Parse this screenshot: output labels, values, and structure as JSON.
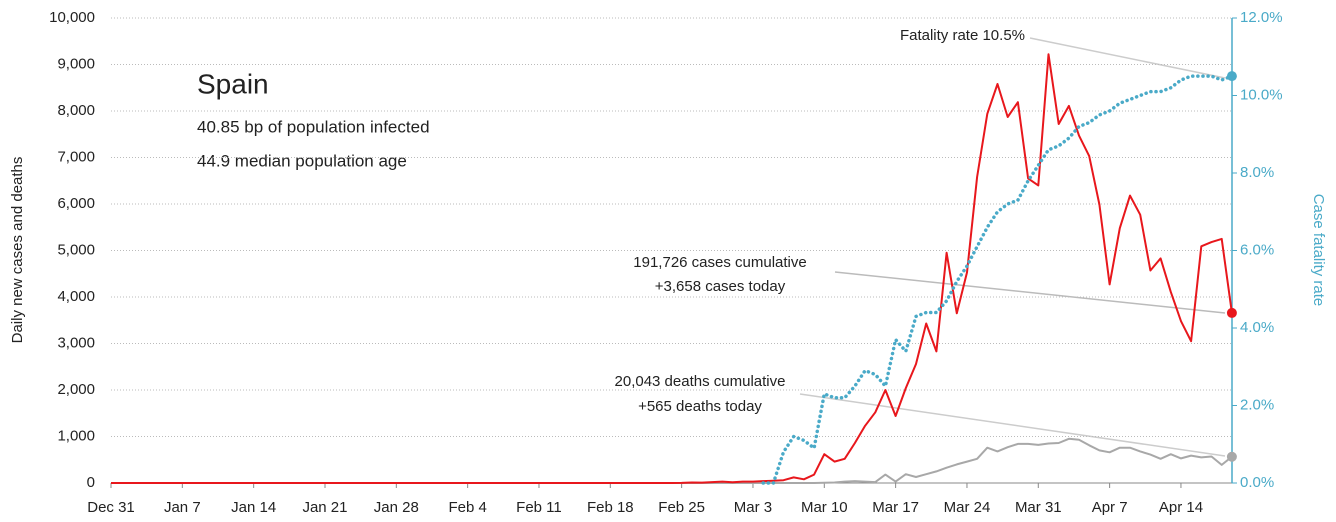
{
  "chart_data": {
    "type": "line",
    "title": "Spain",
    "subtitle": [
      "40.85 bp of population infected",
      "44.9 median population age"
    ],
    "ylabel": "Daily new cases and deaths",
    "y2label": "Case fatality rate",
    "annotations": [
      "Fatality rate 10.5%",
      "191,726 cases cumulative",
      "+3,658 cases today",
      "20,043 deaths cumulative",
      "+565 deaths today"
    ],
    "categories": [
      "Dec 31",
      null,
      null,
      null,
      null,
      null,
      null,
      "Jan 7",
      null,
      null,
      null,
      null,
      null,
      null,
      "Jan 14",
      null,
      null,
      null,
      null,
      null,
      null,
      "Jan 21",
      null,
      null,
      null,
      null,
      null,
      null,
      "Jan 28",
      null,
      null,
      null,
      null,
      null,
      null,
      "Feb 4",
      null,
      null,
      null,
      null,
      null,
      null,
      "Feb 11",
      null,
      null,
      null,
      null,
      null,
      null,
      "Feb 18",
      null,
      null,
      null,
      null,
      null,
      null,
      "Feb 25",
      null,
      null,
      null,
      null,
      null,
      null,
      "Mar 3",
      null,
      null,
      null,
      null,
      null,
      null,
      "Mar 10",
      null,
      null,
      null,
      null,
      null,
      null,
      "Mar 17",
      null,
      null,
      null,
      null,
      null,
      null,
      "Mar 24",
      null,
      null,
      null,
      null,
      null,
      null,
      "Mar 31",
      null,
      null,
      null,
      null,
      null,
      null,
      "Apr 7",
      null,
      null,
      null,
      null,
      null,
      null,
      "Apr 14",
      null,
      null,
      null,
      null,
      null
    ],
    "series": [
      {
        "name": "Daily new deaths",
        "color": "#a8a8a8",
        "values": [
          0,
          0,
          0,
          0,
          0,
          0,
          0,
          0,
          0,
          0,
          0,
          0,
          0,
          0,
          0,
          0,
          0,
          0,
          0,
          0,
          0,
          0,
          0,
          0,
          0,
          0,
          0,
          0,
          0,
          0,
          0,
          0,
          0,
          0,
          0,
          0,
          0,
          0,
          0,
          0,
          0,
          0,
          0,
          0,
          0,
          0,
          0,
          0,
          0,
          0,
          0,
          0,
          0,
          0,
          0,
          0,
          0,
          0,
          0,
          0,
          0,
          0,
          0,
          0,
          0,
          0,
          0,
          0,
          0,
          0,
          5,
          10,
          30,
          40,
          30,
          20,
          180,
          30,
          190,
          130,
          190,
          250,
          330,
          400,
          460,
          520,
          760,
          680,
          770,
          840,
          840,
          820,
          850,
          860,
          950,
          930,
          810,
          700,
          660,
          760,
          760,
          680,
          610,
          520,
          620,
          530,
          590,
          550,
          570,
          390,
          565
        ]
      },
      {
        "name": "Daily new cases",
        "color": "#e8171c",
        "values": [
          0,
          0,
          0,
          0,
          0,
          0,
          0,
          0,
          0,
          0,
          0,
          0,
          0,
          0,
          0,
          0,
          0,
          0,
          0,
          0,
          0,
          0,
          0,
          0,
          0,
          0,
          0,
          0,
          0,
          0,
          0,
          0,
          0,
          0,
          0,
          0,
          0,
          0,
          0,
          0,
          0,
          0,
          0,
          0,
          0,
          0,
          0,
          0,
          0,
          0,
          0,
          0,
          0,
          0,
          0,
          0,
          2,
          10,
          8,
          20,
          30,
          15,
          30,
          30,
          40,
          50,
          60,
          120,
          80,
          180,
          620,
          460,
          520,
          860,
          1230,
          1520,
          2000,
          1440,
          2040,
          2560,
          3430,
          2830,
          4950,
          3650,
          4530,
          6580,
          7940,
          8580,
          7870,
          8190,
          6550,
          6400,
          9220,
          7720,
          8110,
          7470,
          7030,
          5990,
          4270,
          5480,
          6180,
          5770,
          4570,
          4830,
          4110,
          3480,
          3050,
          5090,
          5180,
          5250,
          3658
        ]
      },
      {
        "name": "Case fatality rate",
        "color": "#4aaac8",
        "axis": "y2",
        "values": [
          null,
          null,
          null,
          null,
          null,
          null,
          null,
          null,
          null,
          null,
          null,
          null,
          null,
          null,
          null,
          null,
          null,
          null,
          null,
          null,
          null,
          null,
          null,
          null,
          null,
          null,
          null,
          null,
          null,
          null,
          null,
          null,
          null,
          null,
          null,
          null,
          null,
          null,
          null,
          null,
          null,
          null,
          null,
          null,
          null,
          null,
          null,
          null,
          null,
          null,
          null,
          null,
          null,
          null,
          null,
          null,
          null,
          null,
          null,
          null,
          null,
          null,
          null,
          null,
          0,
          0,
          0.8,
          1.2,
          1.1,
          0.9,
          2.3,
          2.2,
          2.2,
          2.5,
          2.9,
          2.8,
          2.5,
          3.7,
          3.4,
          4.3,
          4.4,
          4.4,
          4.7,
          5.2,
          5.6,
          6.1,
          6.6,
          7.0,
          7.2,
          7.3,
          7.8,
          8.2,
          8.6,
          8.7,
          8.9,
          9.2,
          9.3,
          9.5,
          9.6,
          9.8,
          9.9,
          10.0,
          10.1,
          10.1,
          10.2,
          10.4,
          10.5,
          10.5,
          10.5,
          10.4,
          10.5
        ]
      }
    ],
    "ylim": [
      0,
      10000
    ],
    "yticks": [
      0,
      {
        "value": 1000,
        "label": "1,000"
      },
      {
        "value": 2000,
        "label": "2,000"
      },
      {
        "value": 3000,
        "label": "3,000"
      },
      {
        "value": 4000,
        "label": "4,000"
      },
      {
        "value": 5000,
        "label": "5,000"
      },
      {
        "value": 6000,
        "label": "6,000"
      },
      {
        "value": 7000,
        "label": "7,000"
      },
      {
        "value": 8000,
        "label": "8,000"
      },
      {
        "value": 9000,
        "label": "9,000"
      },
      {
        "value": 10000,
        "label": "10,000"
      }
    ],
    "y2lim": [
      0,
      12
    ],
    "y2ticks": [
      {
        "value": 0,
        "label": "0.0%"
      },
      {
        "value": 2,
        "label": "2.0%"
      },
      {
        "value": 4,
        "label": "4.0%"
      },
      {
        "value": 6,
        "label": "6.0%"
      },
      {
        "value": 8,
        "label": "8.0%"
      },
      {
        "value": 10,
        "label": "10.0%"
      },
      {
        "value": 12,
        "label": "12.0%"
      }
    ],
    "grid": true
  }
}
